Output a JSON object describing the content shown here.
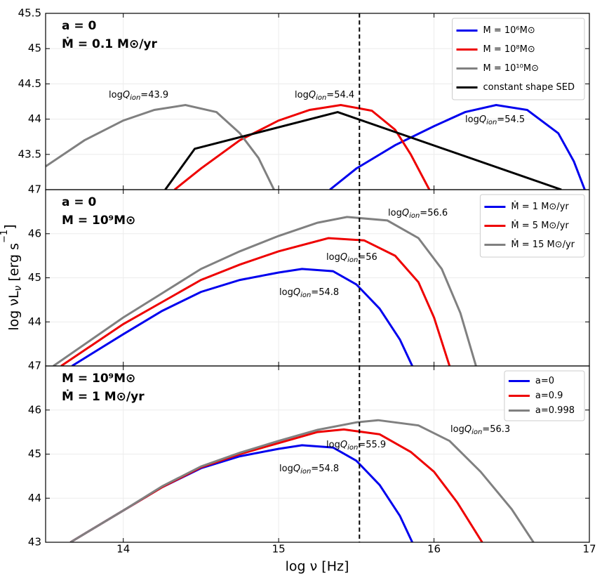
{
  "xlabel": "log ν [Hz]",
  "ylabel": [
    "log νL",
    "ν",
    " [erg s",
    "−1",
    "]"
  ],
  "chart_data": [
    {
      "type": "line",
      "labels": [
        "a = 0",
        "Ṁ = 0.1 M⊙/yr"
      ],
      "xlim": [
        13.5,
        17
      ],
      "xticks": [
        14,
        15,
        16,
        17
      ],
      "ylim": [
        43,
        45.5
      ],
      "yticks": [
        43.5,
        44,
        44.5,
        45,
        45.5
      ],
      "grid": true,
      "legend": "upper right",
      "vline": 15.52,
      "annotations": [
        [
          "log",
          "Q",
          "ion",
          "=43.9"
        ],
        [
          "log",
          "Q",
          "ion",
          "=54.4"
        ],
        [
          "log",
          "Q",
          "ion",
          "=54.5"
        ]
      ],
      "series": [
        {
          "name": "M = 10⁶M⊙",
          "color": "#0000ee",
          "x": [
            15.33,
            15.5,
            15.75,
            16.0,
            16.2,
            16.4,
            16.6,
            16.8,
            16.9,
            16.97
          ],
          "values": [
            43.0,
            43.3,
            43.63,
            43.9,
            44.1,
            44.2,
            44.13,
            43.8,
            43.4,
            43.0
          ]
        },
        {
          "name": "M = 10⁸M⊙",
          "color": "#ee0000",
          "x": [
            14.33,
            14.5,
            14.75,
            15.0,
            15.2,
            15.4,
            15.6,
            15.75,
            15.85,
            15.97
          ],
          "values": [
            43.0,
            43.3,
            43.7,
            43.98,
            44.13,
            44.2,
            44.12,
            43.85,
            43.5,
            43.0
          ]
        },
        {
          "name": "M = 10¹⁰M⊙",
          "color": "#808080",
          "x": [
            13.5,
            13.75,
            14.0,
            14.2,
            14.4,
            14.6,
            14.75,
            14.87,
            14.97
          ],
          "values": [
            43.33,
            43.7,
            43.98,
            44.13,
            44.2,
            44.1,
            43.8,
            43.45,
            43.0
          ]
        },
        {
          "name": "constant shape SED",
          "color": "#000000",
          "x": [
            14.27,
            14.46,
            15.38,
            16.82
          ],
          "values": [
            43.0,
            43.58,
            44.1,
            43.0
          ]
        }
      ]
    },
    {
      "type": "line",
      "labels": [
        "a = 0",
        "M = 10⁹M⊙"
      ],
      "xlim": [
        13.5,
        17
      ],
      "xticks": [
        14,
        15,
        16,
        17
      ],
      "ylim": [
        43,
        47
      ],
      "yticks": [
        44,
        45,
        46,
        47
      ],
      "grid": true,
      "legend": "upper right",
      "vline": 15.52,
      "annotations": [
        [
          "log",
          "Q",
          "ion",
          "=56.6"
        ],
        [
          "log",
          "Q",
          "ion",
          "=56"
        ],
        [
          "log",
          "Q",
          "ion",
          "=54.8"
        ]
      ],
      "series": [
        {
          "name": "Ṁ = 1 M⊙/yr",
          "color": "#0000ee",
          "x": [
            13.67,
            14.0,
            14.25,
            14.5,
            14.75,
            15.0,
            15.15,
            15.35,
            15.5,
            15.65,
            15.78,
            15.86
          ],
          "values": [
            43.0,
            43.72,
            44.25,
            44.68,
            44.95,
            45.12,
            45.2,
            45.15,
            44.85,
            44.3,
            43.6,
            43.0
          ]
        },
        {
          "name": "Ṁ = 5 M⊙/yr",
          "color": "#ee0000",
          "x": [
            13.6,
            14.0,
            14.25,
            14.5,
            14.75,
            15.0,
            15.32,
            15.55,
            15.75,
            15.9,
            16.0,
            16.1
          ],
          "values": [
            43.0,
            43.95,
            44.45,
            44.95,
            45.3,
            45.6,
            45.9,
            45.85,
            45.5,
            44.9,
            44.1,
            43.0
          ]
        },
        {
          "name": "Ṁ = 15 M⊙/yr",
          "color": "#808080",
          "x": [
            13.55,
            14.0,
            14.25,
            14.5,
            14.75,
            15.0,
            15.25,
            15.44,
            15.7,
            15.9,
            16.05,
            16.17,
            16.27
          ],
          "values": [
            43.0,
            44.1,
            44.65,
            45.2,
            45.6,
            45.95,
            46.25,
            46.38,
            46.3,
            45.9,
            45.2,
            44.2,
            43.0
          ]
        }
      ]
    },
    {
      "type": "line",
      "labels": [
        "M = 10⁹M⊙",
        "Ṁ = 1 M⊙/yr"
      ],
      "xlim": [
        13.5,
        17
      ],
      "xticks": [
        14,
        15,
        16,
        17
      ],
      "ylim": [
        43,
        47
      ],
      "yticks": [
        43,
        44,
        45,
        46,
        47
      ],
      "grid": true,
      "legend": "upper right",
      "vline": 15.52,
      "annotations": [
        [
          "log",
          "Q",
          "ion",
          "=56.3"
        ],
        [
          "log",
          "Q",
          "ion",
          "=55.9"
        ],
        [
          "log",
          "Q",
          "ion",
          "=54.8"
        ]
      ],
      "series": [
        {
          "name": "a=0",
          "color": "#0000ee",
          "x": [
            13.66,
            14.0,
            14.25,
            14.5,
            14.75,
            15.0,
            15.15,
            15.35,
            15.5,
            15.65,
            15.78,
            15.86
          ],
          "values": [
            43.0,
            43.72,
            44.25,
            44.68,
            44.95,
            45.12,
            45.2,
            45.15,
            44.85,
            44.3,
            43.6,
            43.0
          ]
        },
        {
          "name": "a=0.9",
          "color": "#ee0000",
          "x": [
            13.66,
            14.0,
            14.25,
            14.5,
            14.75,
            15.0,
            15.25,
            15.42,
            15.65,
            15.85,
            16.0,
            16.15,
            16.31
          ],
          "values": [
            43.0,
            43.72,
            44.25,
            44.7,
            45.0,
            45.25,
            45.5,
            45.56,
            45.45,
            45.05,
            44.6,
            43.9,
            43.0
          ]
        },
        {
          "name": "a=0.998",
          "color": "#808080",
          "x": [
            13.66,
            14.0,
            14.25,
            14.5,
            14.75,
            15.0,
            15.25,
            15.5,
            15.64,
            15.9,
            16.1,
            16.3,
            16.5,
            16.64
          ],
          "values": [
            43.0,
            43.72,
            44.27,
            44.72,
            45.03,
            45.3,
            45.55,
            45.72,
            45.77,
            45.65,
            45.3,
            44.6,
            43.75,
            43.0
          ]
        }
      ]
    }
  ]
}
